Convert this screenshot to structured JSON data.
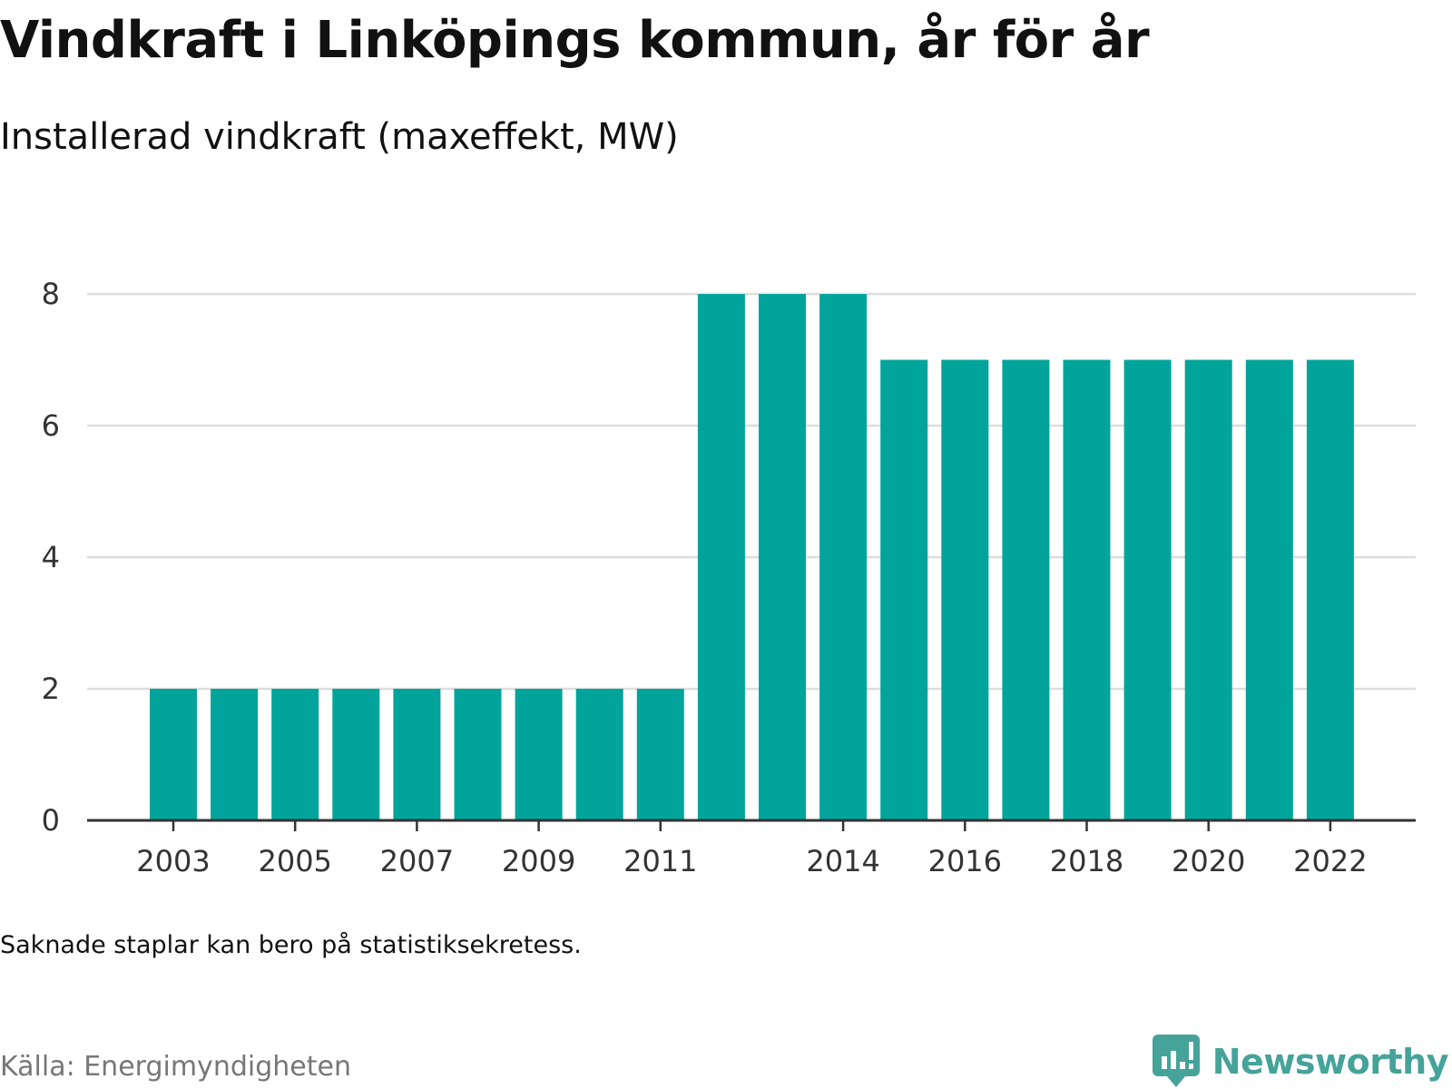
{
  "title": "Vindkraft i Linköpings kommun, år för år",
  "subtitle": "Installerad vindkraft (maxeffekt, MW)",
  "note": "Saknade staplar kan bero på statistiksekretess.",
  "source": "Källa: Energimyndigheten",
  "brand": {
    "name": "Newsworthy",
    "icon": "newsworthy-logo-icon",
    "color": "#45a39a"
  },
  "colors": {
    "bar": "#00a49a",
    "grid": "#dddddd",
    "axis": "#333333"
  },
  "chart_data": {
    "type": "bar",
    "categories": [
      "2003",
      "2004",
      "2005",
      "2006",
      "2007",
      "2008",
      "2009",
      "2010",
      "2011",
      "2012",
      "2013",
      "2014",
      "2015",
      "2016",
      "2017",
      "2018",
      "2019",
      "2020",
      "2021",
      "2022"
    ],
    "values": [
      2,
      2,
      2,
      2,
      2,
      2,
      2,
      2,
      2,
      8,
      8,
      8,
      7,
      7,
      7,
      7,
      7,
      7,
      7,
      7
    ],
    "x_tick_labels": [
      "2003",
      "2005",
      "2007",
      "2009",
      "2011",
      "2014",
      "2016",
      "2018",
      "2020",
      "2022"
    ],
    "y_ticks": [
      0,
      2,
      4,
      6,
      8
    ],
    "ylim": [
      0,
      8
    ],
    "grid": true,
    "legend": false,
    "title": "Vindkraft i Linköpings kommun, år för år",
    "subtitle": "Installerad vindkraft (maxeffekt, MW)",
    "xlabel": "",
    "ylabel": ""
  }
}
